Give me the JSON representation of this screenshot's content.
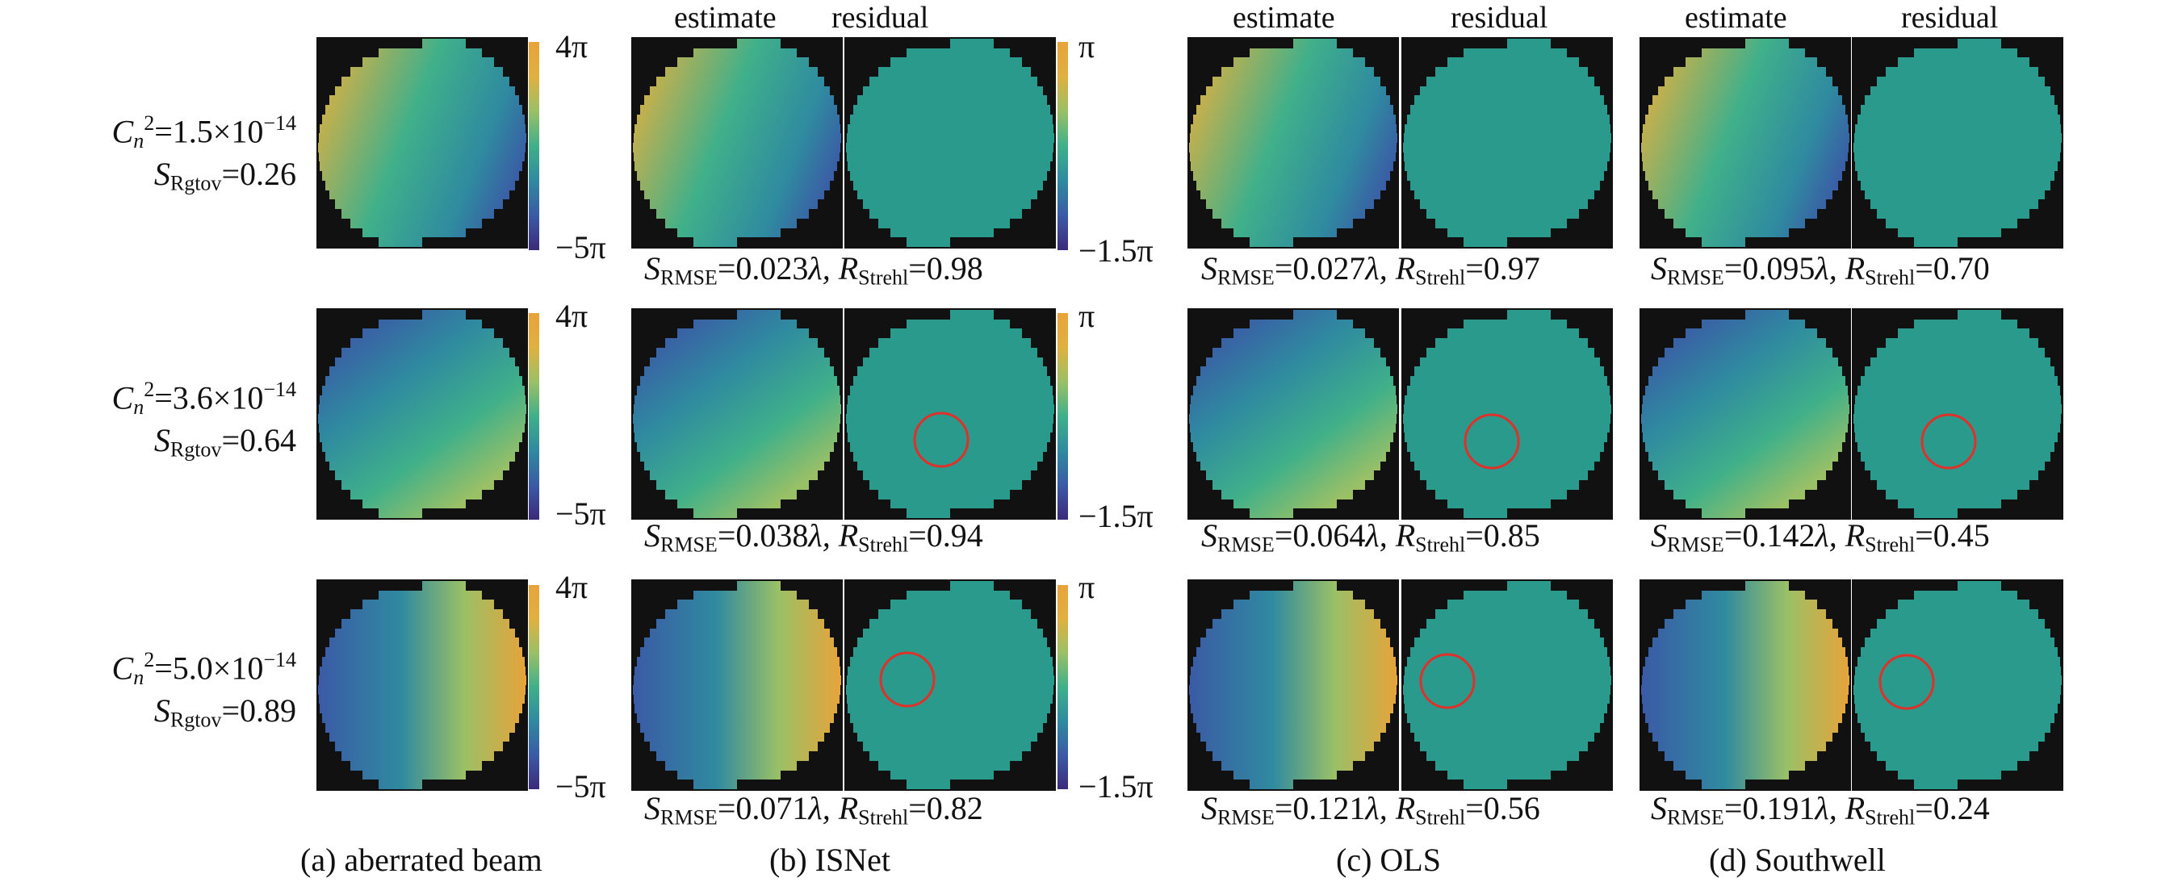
{
  "headers": {
    "estimate": "estimate",
    "residual": "residual"
  },
  "colorbars": {
    "aberrated": {
      "top": "4π",
      "bottom": "−5π"
    },
    "residual": {
      "top": "π",
      "bottom": "−1.5π"
    }
  },
  "rows": [
    {
      "cn2_label": "C",
      "cn2_sub": "n",
      "cn2_sup": "2",
      "cn2_value": "=1.5×10",
      "cn2_exp": "−14",
      "s_label": "S",
      "s_sub": "Rgtov",
      "s_value": "=0.26"
    },
    {
      "cn2_label": "C",
      "cn2_sub": "n",
      "cn2_sup": "2",
      "cn2_value": "=3.6×10",
      "cn2_exp": "−14",
      "s_label": "S",
      "s_sub": "Rgtov",
      "s_value": "=0.64"
    },
    {
      "cn2_label": "C",
      "cn2_sub": "n",
      "cn2_sup": "2",
      "cn2_value": "=5.0×10",
      "cn2_exp": "−14",
      "s_label": "S",
      "s_sub": "Rgtov",
      "s_value": "=0.89"
    }
  ],
  "methods": {
    "isnet": [
      {
        "rmse": "=0.023",
        "strehl": "=0.98"
      },
      {
        "rmse": "=0.038",
        "strehl": "=0.94"
      },
      {
        "rmse": "=0.071",
        "strehl": "=0.82"
      }
    ],
    "ols": [
      {
        "rmse": "=0.027",
        "strehl": "=0.97"
      },
      {
        "rmse": "=0.064",
        "strehl": "=0.85"
      },
      {
        "rmse": "=0.121",
        "strehl": "=0.56"
      }
    ],
    "southwell": [
      {
        "rmse": "=0.095",
        "strehl": "=0.70"
      },
      {
        "rmse": "=0.142",
        "strehl": "=0.45"
      },
      {
        "rmse": "=0.191",
        "strehl": "=0.24"
      }
    ]
  },
  "metric_parts": {
    "s": "S",
    "s_sub": "RMSE",
    "lambda": "λ, ",
    "r": "R",
    "r_sub": "Strehl"
  },
  "captions": {
    "a": "(a) aberrated beam",
    "b": "(b) ISNet",
    "c": "(c) OLS",
    "d": "(d) Southwell"
  },
  "colors": {
    "mask": "#111111",
    "residual_fill": "#2a9a8d",
    "circle_marker": "#e0302a",
    "colormap": [
      "#3b2a7a",
      "#3b5aa6",
      "#2f8aa0",
      "#3fb08a",
      "#9ac066",
      "#e0b040",
      "#e8a33a"
    ]
  }
}
